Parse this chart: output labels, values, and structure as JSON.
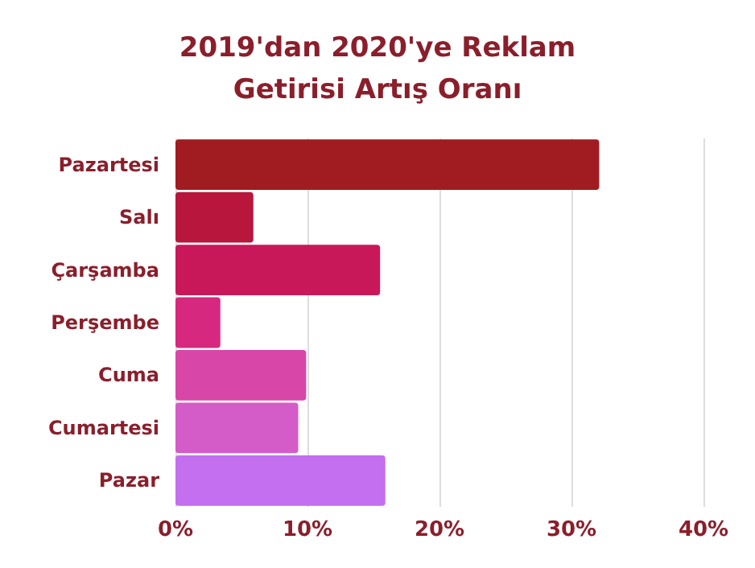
{
  "chart_data": {
    "type": "bar",
    "orientation": "horizontal",
    "title": "2019'dan 2020'ye Reklam\nGetirisi Artış Oranı",
    "categories": [
      "Pazartesi",
      "Salı",
      "Çarşamba",
      "Perşembe",
      "Cuma",
      "Cumartesi",
      "Pazar"
    ],
    "values": [
      32.1,
      5.9,
      15.5,
      3.4,
      9.9,
      9.3,
      15.9
    ],
    "colors": [
      "#a01c20",
      "#b8163c",
      "#c8185a",
      "#d6287e",
      "#d846a8",
      "#d45cc8",
      "#c46ef0"
    ],
    "xlim": [
      0,
      40
    ],
    "xticks": [
      {
        "value": 0,
        "label": "0%"
      },
      {
        "value": 10,
        "label": "10%"
      },
      {
        "value": 20,
        "label": "20%"
      },
      {
        "value": 30,
        "label": "30%"
      },
      {
        "value": 40,
        "label": "40%"
      }
    ],
    "grid": "x"
  }
}
